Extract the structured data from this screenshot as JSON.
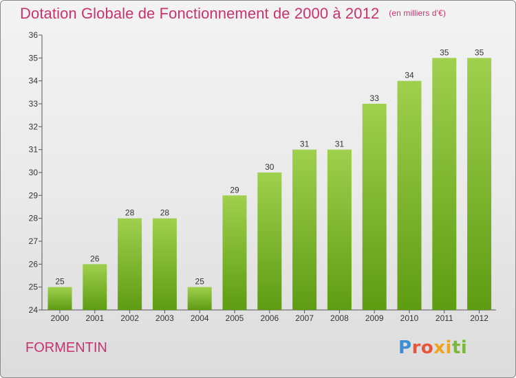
{
  "header": {
    "title": "Dotation Globale de Fonctionnement de 2000 à 2012",
    "unit": "(en milliers d'€)"
  },
  "footer": {
    "commune": "FORMENTIN",
    "logo": "Proxiti"
  },
  "colors": {
    "title": "#c8326e",
    "bar_top": "#9fd04e",
    "bar_bottom": "#5e9c12",
    "axis": "#555555"
  },
  "chart_data": {
    "type": "bar",
    "title": "Dotation Globale de Fonctionnement de 2000 à 2012",
    "subtitle": "(en milliers d'€)",
    "xlabel": "",
    "ylabel": "",
    "categories": [
      "2000",
      "2001",
      "2002",
      "2003",
      "2004",
      "2005",
      "2006",
      "2007",
      "2008",
      "2009",
      "2010",
      "2011",
      "2012"
    ],
    "values": [
      25,
      26,
      28,
      28,
      25,
      29,
      30,
      31,
      31,
      33,
      34,
      35,
      35
    ],
    "ylim": [
      24,
      36
    ],
    "yticks": [
      24,
      25,
      26,
      27,
      28,
      29,
      30,
      31,
      32,
      33,
      34,
      35,
      36
    ],
    "grid": false,
    "legend": "none",
    "data_labels": true
  }
}
